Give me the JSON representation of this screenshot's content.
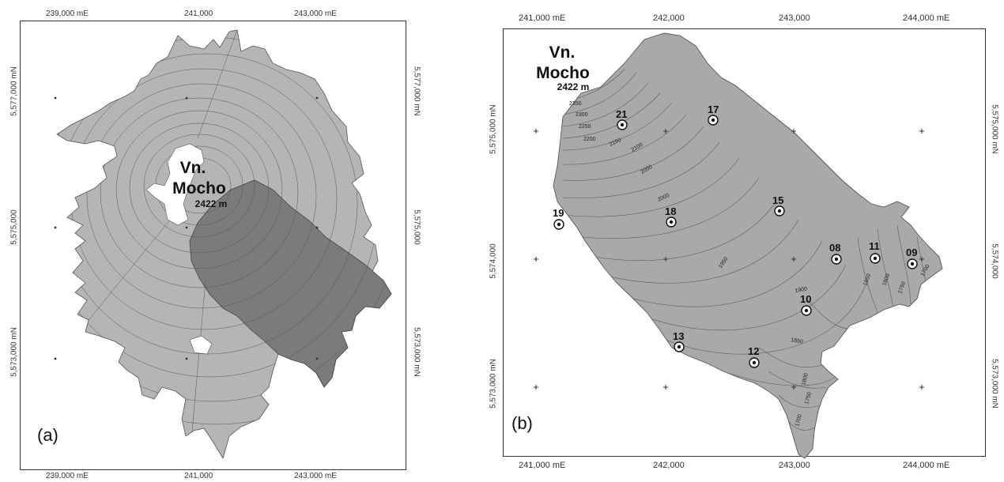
{
  "panel_a": {
    "label": "(a)",
    "top_ticks": [
      "239,000 mE",
      "241,000",
      "243,000 mE"
    ],
    "bottom_ticks": [
      "239,000 mE",
      "241,000",
      "243,000 mE"
    ],
    "left_ticks": [
      "5,577,000 mN",
      "5,575,000",
      "5,573,000 mN"
    ],
    "right_ticks": [
      "5,577,000 mN",
      "5,575,000",
      "5,573,000 mN"
    ],
    "volcano": {
      "name_line1": "Vn.",
      "name_line2": "Mocho",
      "elevation": "2422 m"
    }
  },
  "panel_b": {
    "label": "(b)",
    "top_ticks": [
      "241,000 mE",
      "242,000",
      "243,000",
      "244,000 mE"
    ],
    "bottom_ticks": [
      "241,000 mE",
      "242,000",
      "243,000",
      "244,000 mE"
    ],
    "left_ticks": [
      "5,575,000 mN",
      "5,574,000",
      "5,573,000 mN"
    ],
    "right_ticks": [
      "5,575,000 mN",
      "5,574,000",
      "5,573,000 mN"
    ],
    "volcano": {
      "name_line1": "Vn.",
      "name_line2": "Mocho",
      "elevation": "2422 m"
    },
    "stations": [
      "21",
      "17",
      "19",
      "18",
      "15",
      "08",
      "11",
      "09",
      "10",
      "13",
      "12"
    ],
    "contour_labels": [
      "2350",
      "2300",
      "2250",
      "2200",
      "2150",
      "2100",
      "2050",
      "2000",
      "1950",
      "1900",
      "1850",
      "1800",
      "1750",
      "1700",
      "1850",
      "1800",
      "1750",
      "1700"
    ]
  },
  "colors": {
    "light_area": "#b5b5b5",
    "dark_area": "#7b7b7b",
    "panel_b_fill": "#a9a9a9",
    "contour": "#555555"
  }
}
